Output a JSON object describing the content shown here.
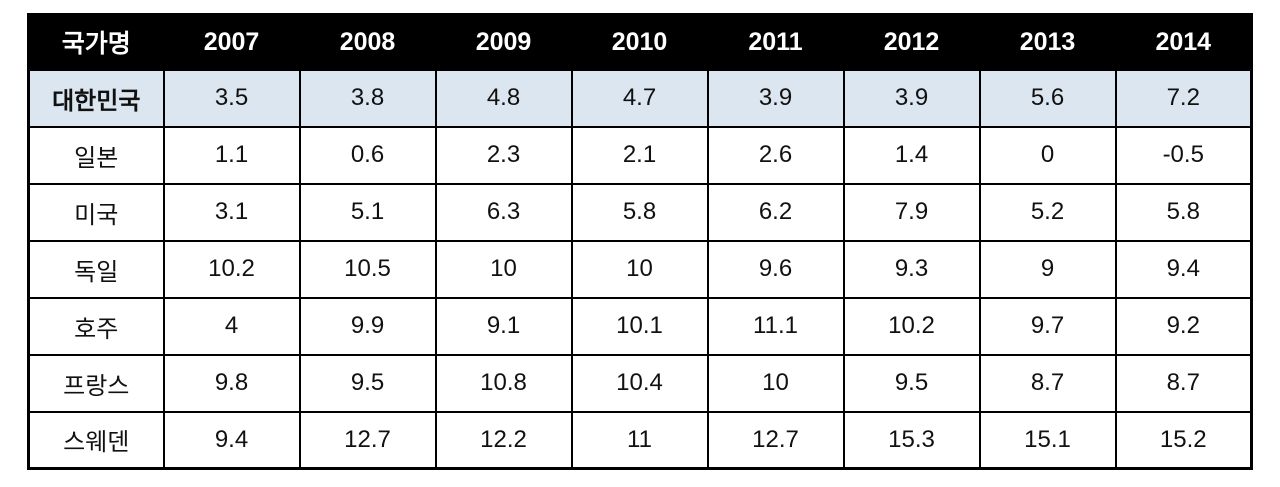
{
  "colors": {
    "header_bg": "#000000",
    "header_text": "#ffffff",
    "highlight_row_bg": "#dce6f1",
    "border": "#000000",
    "body_text": "#111111"
  },
  "chart_data": {
    "type": "table",
    "columns": [
      "국가명",
      "2007",
      "2008",
      "2009",
      "2010",
      "2011",
      "2012",
      "2013",
      "2014"
    ],
    "rows": [
      {
        "label": "대한민국",
        "highlighted": true,
        "values": [
          3.5,
          3.8,
          4.8,
          4.7,
          3.9,
          3.9,
          5.6,
          7.2
        ]
      },
      {
        "label": "일본",
        "highlighted": false,
        "values": [
          1.1,
          0.6,
          2.3,
          2.1,
          2.6,
          1.4,
          0,
          -0.5
        ]
      },
      {
        "label": "미국",
        "highlighted": false,
        "values": [
          3.1,
          5.1,
          6.3,
          5.8,
          6.2,
          7.9,
          5.2,
          5.8
        ]
      },
      {
        "label": "독일",
        "highlighted": false,
        "values": [
          10.2,
          10.5,
          10,
          10,
          9.6,
          9.3,
          9,
          9.4
        ]
      },
      {
        "label": "호주",
        "highlighted": false,
        "values": [
          4,
          9.9,
          9.1,
          10.1,
          11.1,
          10.2,
          9.7,
          9.2
        ]
      },
      {
        "label": "프랑스",
        "highlighted": false,
        "values": [
          9.8,
          9.5,
          10.8,
          10.4,
          10,
          9.5,
          8.7,
          8.7
        ]
      },
      {
        "label": "스웨덴",
        "highlighted": false,
        "values": [
          9.4,
          12.7,
          12.2,
          11,
          12.7,
          15.3,
          15.1,
          15.2
        ]
      }
    ]
  }
}
